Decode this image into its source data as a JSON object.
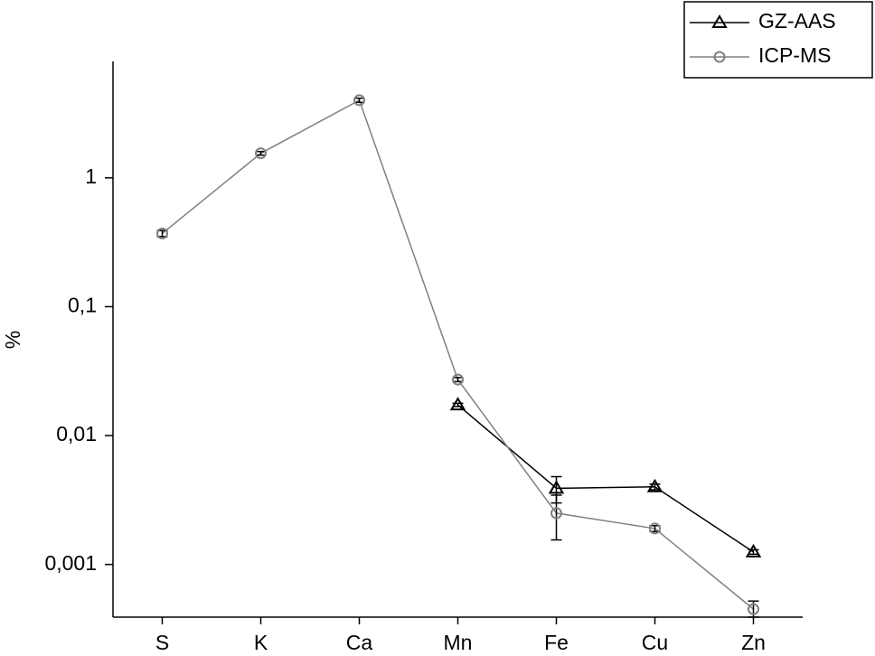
{
  "chart_data": {
    "type": "line",
    "ylabel": "%",
    "log_y": true,
    "categories": [
      "S",
      "K",
      "Ca",
      "Mn",
      "Fe",
      "Cu",
      "Zn"
    ],
    "series": [
      {
        "name": "GZ-AAS",
        "color": "#000000",
        "marker": "triangle",
        "values": [
          null,
          null,
          null,
          0.0173,
          0.0039,
          0.004,
          0.00125
        ],
        "errors": [
          null,
          null,
          null,
          0.0005,
          0.0009,
          0.0002,
          5e-05
        ]
      },
      {
        "name": "ICP-MS",
        "color": "#808080",
        "marker": "circle",
        "values": [
          0.37,
          1.55,
          4.0,
          0.0272,
          0.0025,
          0.0019,
          0.00045
        ],
        "errors": [
          0.02,
          0.05,
          0.15,
          0.001,
          0.00095,
          0.0001,
          7e-05
        ]
      }
    ],
    "ylim": [
      0.00039,
      8
    ],
    "yticks": [
      {
        "value": 0.001,
        "label": "0,001"
      },
      {
        "value": 0.01,
        "label": "0,01"
      },
      {
        "value": 0.1,
        "label": "0,1"
      },
      1
    ],
    "legend": "top-right"
  }
}
